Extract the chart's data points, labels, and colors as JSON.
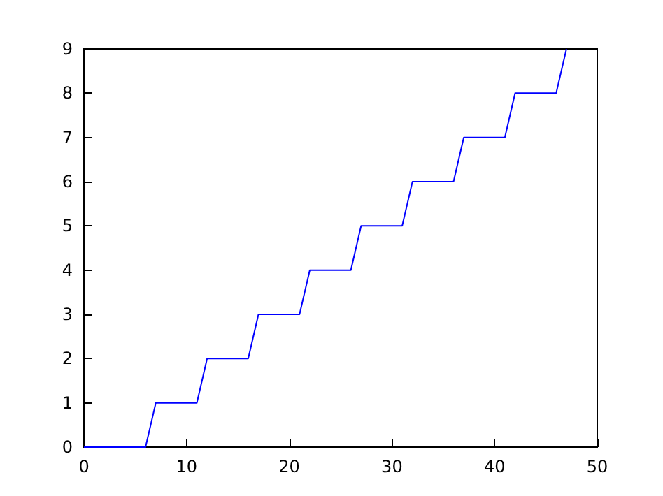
{
  "chart_data": {
    "type": "line",
    "x": [
      0,
      6,
      7,
      11,
      12,
      16,
      17,
      21,
      22,
      26,
      27,
      31,
      32,
      36,
      37,
      41,
      42,
      46,
      47
    ],
    "series": [
      {
        "color": "#0000ff",
        "values": [
          0,
          0,
          1,
          1,
          2,
          2,
          3,
          3,
          4,
          4,
          5,
          5,
          6,
          6,
          7,
          7,
          8,
          8,
          9
        ]
      }
    ],
    "xlim": [
      0,
      50
    ],
    "xticks": [
      0,
      10,
      20,
      30,
      40,
      50
    ],
    "ylim": [
      0,
      9
    ],
    "yticks": [
      0,
      1,
      2,
      3,
      4,
      5,
      6,
      7,
      8,
      9
    ],
    "grid": false,
    "marker": "none",
    "line_style": "solid"
  }
}
